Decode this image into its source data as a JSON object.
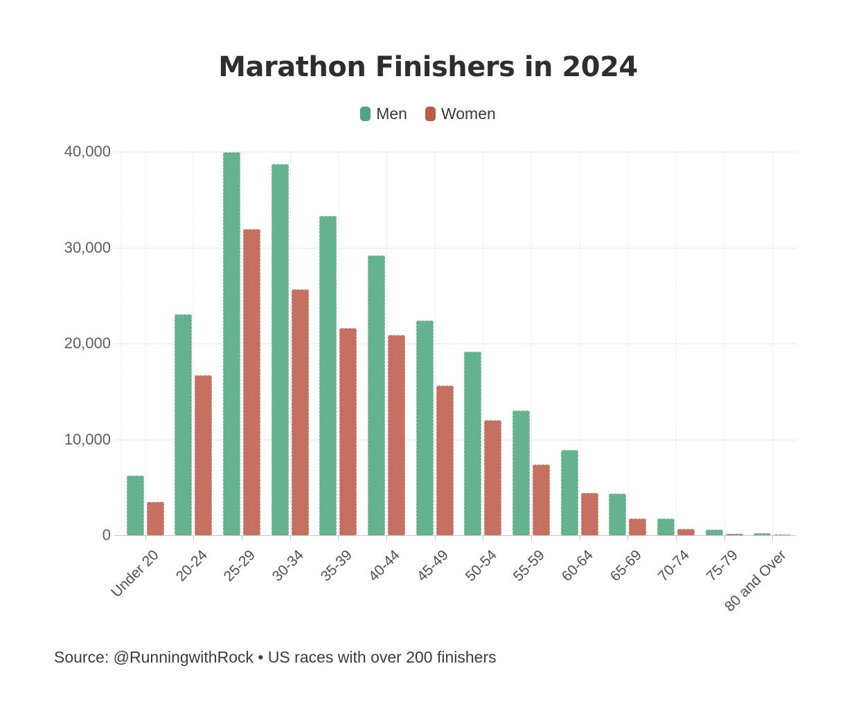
{
  "title": "Marathon Finishers in 2024",
  "source": "Source: @RunningwithRock • US races with over 200 finishers",
  "colors": {
    "men": "#4fa77f",
    "women": "#bd5b49",
    "gridline": "#e9e9e9",
    "axis": "#c6c6c6",
    "title_text": "#2e2e2e",
    "axis_text": "#5d5d5d"
  },
  "chart_data": {
    "type": "bar",
    "title": "Marathon Finishers in 2024",
    "xlabel": "",
    "ylabel": "",
    "categories": [
      "Under 20",
      "20-24",
      "25-29",
      "30-34",
      "35-39",
      "40-44",
      "45-49",
      "50-54",
      "55-59",
      "60-64",
      "65-69",
      "70-74",
      "75-79",
      "80 and Over"
    ],
    "series": [
      {
        "name": "Men",
        "color": "#4fa77f",
        "values": [
          6200,
          23000,
          39900,
          38700,
          33300,
          29200,
          22400,
          19100,
          13000,
          8900,
          4300,
          1700,
          600,
          200
        ]
      },
      {
        "name": "Women",
        "color": "#bd5b49",
        "values": [
          3500,
          16700,
          31900,
          25600,
          21600,
          20900,
          15600,
          12000,
          7400,
          4400,
          1700,
          650,
          150,
          60
        ]
      }
    ],
    "ylim": [
      0,
      40000
    ],
    "yticks": [
      0,
      10000,
      20000,
      30000,
      40000
    ],
    "ytick_labels": [
      "0",
      "10,000",
      "20,000",
      "30,000",
      "40,000"
    ],
    "grid": "horizontal solid lines at yticks, faint dotted vertical line at each category center",
    "legend_position": "top-center",
    "x_tick_label_rotation": -45
  }
}
